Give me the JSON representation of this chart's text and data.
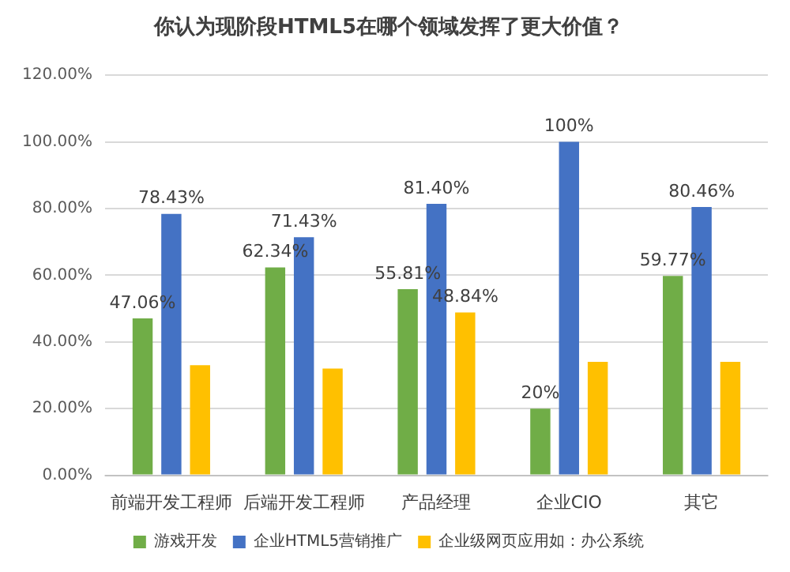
{
  "chart_data": {
    "type": "bar",
    "title": "你认为现阶段HTML5在哪个领域发挥了更大价值？",
    "categories": [
      "前端开发工程师",
      "后端开发工程师",
      "产品经理",
      "企业CIO",
      "其它"
    ],
    "series": [
      {
        "name": "游戏开发",
        "color": "#70ad47",
        "values": [
          47.06,
          62.34,
          55.81,
          20,
          59.77
        ],
        "value_labels": [
          "47.06%",
          "62.34%",
          "55.81%",
          "20%",
          "59.77%"
        ]
      },
      {
        "name": "企业HTML5营销推广",
        "color": "#4472c4",
        "values": [
          78.43,
          71.43,
          81.4,
          100,
          80.46
        ],
        "value_labels": [
          "78.43%",
          "71.43%",
          "81.40%",
          "100%",
          "80.46%"
        ]
      },
      {
        "name": "企业级网页应用如：办公系统",
        "color": "#ffc000",
        "values": [
          33,
          32,
          48.84,
          34,
          34
        ],
        "value_labels": [
          null,
          null,
          "48.84%",
          null,
          null
        ]
      }
    ],
    "ylim": [
      0,
      120
    ],
    "yticks": [
      {
        "value": 0,
        "label": "0.00%"
      },
      {
        "value": 20,
        "label": "20.00%"
      },
      {
        "value": 40,
        "label": "40.00%"
      },
      {
        "value": 60,
        "label": "60.00%"
      },
      {
        "value": 80,
        "label": "80.00%"
      },
      {
        "value": 100,
        "label": "100.00%"
      },
      {
        "value": 120,
        "label": "120.00%"
      }
    ],
    "grid": "y",
    "legend": "bottom"
  }
}
